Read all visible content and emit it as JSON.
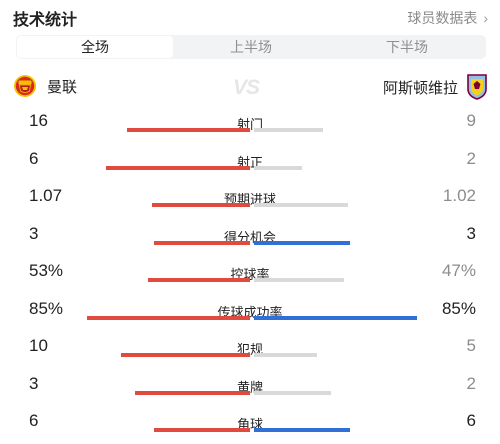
{
  "header": {
    "title": "技术统计",
    "player_data_link": "球员数据表",
    "chevron": "›"
  },
  "tabs": [
    {
      "label": "全场",
      "active": true
    },
    {
      "label": "上半场",
      "active": false
    },
    {
      "label": "下半场",
      "active": false
    }
  ],
  "teams": {
    "home": {
      "name": "曼联",
      "logo": "manchester-united-crest"
    },
    "away": {
      "name": "阿斯顿维拉",
      "logo": "aston-villa-crest"
    },
    "vs_label": "VS"
  },
  "colors": {
    "home_bar": "#e04a3f",
    "away_bar": "#2f6fd6",
    "neutral_bar": "#d9d9d9"
  },
  "stats": [
    {
      "label": "射门",
      "home": "16",
      "away": "9",
      "home_share": 0.64,
      "away_share": 0.36,
      "home_color": "red",
      "away_color": "grey"
    },
    {
      "label": "射正",
      "home": "6",
      "away": "2",
      "home_share": 0.75,
      "away_share": 0.25,
      "home_color": "red",
      "away_color": "grey"
    },
    {
      "label": "预期进球",
      "home": "1.07",
      "away": "1.02",
      "home_share": 0.51,
      "away_share": 0.49,
      "home_color": "red",
      "away_color": "grey"
    },
    {
      "label": "得分机会",
      "home": "3",
      "away": "3",
      "home_share": 0.5,
      "away_share": 0.5,
      "home_color": "red",
      "away_color": "blue"
    },
    {
      "label": "控球率",
      "home": "53%",
      "away": "47%",
      "home_share": 0.53,
      "away_share": 0.47,
      "home_color": "red",
      "away_color": "grey"
    },
    {
      "label": "传球成功率",
      "home": "85%",
      "away": "85%",
      "home_share": 0.85,
      "away_share": 0.85,
      "home_color": "red",
      "away_color": "blue"
    },
    {
      "label": "犯规",
      "home": "10",
      "away": "5",
      "home_share": 0.67,
      "away_share": 0.33,
      "home_color": "red",
      "away_color": "grey"
    },
    {
      "label": "黄牌",
      "home": "3",
      "away": "2",
      "home_share": 0.6,
      "away_share": 0.4,
      "home_color": "red",
      "away_color": "grey"
    },
    {
      "label": "角球",
      "home": "6",
      "away": "6",
      "home_share": 0.5,
      "away_share": 0.5,
      "home_color": "red",
      "away_color": "blue"
    }
  ]
}
